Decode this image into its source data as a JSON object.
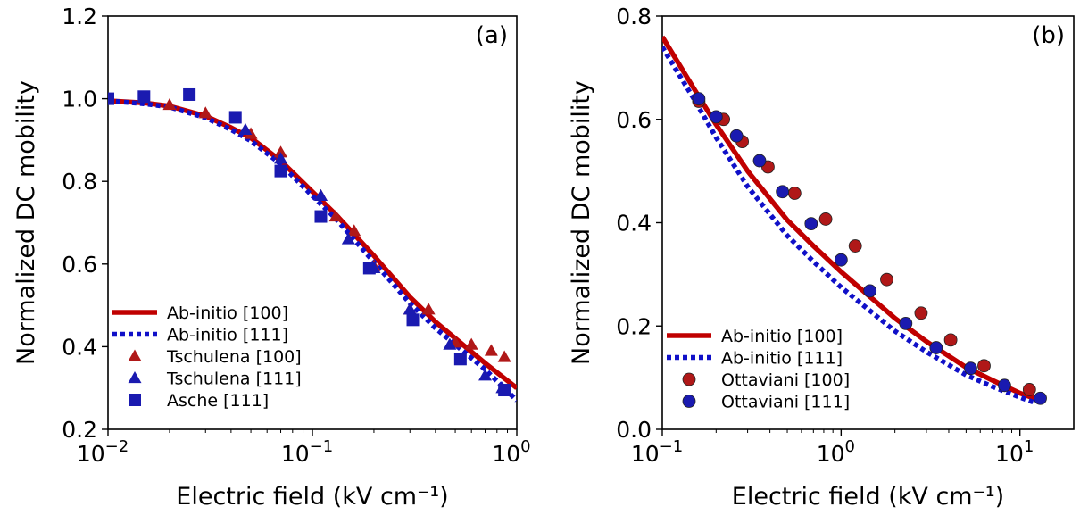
{
  "colors": {
    "red": "#c00000",
    "blue": "#1010c8",
    "red_marker": "#b01818",
    "blue_marker": "#1a1ab0"
  },
  "chart_data": [
    {
      "panel_label": "(a)",
      "type": "line",
      "xscale": "log",
      "xlim": [
        0.01,
        1
      ],
      "ylim": [
        0.2,
        1.2
      ],
      "xlabel": "Electric field (kV cm⁻¹)",
      "ylabel": "Normalized DC mobility",
      "x_ticks": [
        {
          "value": 0.01,
          "base": "10",
          "exp": "−2"
        },
        {
          "value": 0.1,
          "base": "10",
          "exp": "−1"
        },
        {
          "value": 1,
          "base": "10",
          "exp": "0"
        }
      ],
      "y_ticks": [
        {
          "value": 0.2,
          "label": "0.2"
        },
        {
          "value": 0.4,
          "label": "0.4"
        },
        {
          "value": 0.6,
          "label": "0.6"
        },
        {
          "value": 0.8,
          "label": "0.8"
        },
        {
          "value": 1.0,
          "label": "1.0"
        },
        {
          "value": 1.2,
          "label": "1.2"
        }
      ],
      "legend_position": "lower-left",
      "series": [
        {
          "name": "Ab-initio [100]",
          "kind": "line",
          "style": "solid",
          "color": "#c00000",
          "x": [
            0.01,
            0.015,
            0.02,
            0.03,
            0.04,
            0.05,
            0.07,
            0.1,
            0.13,
            0.2,
            0.3,
            0.4,
            0.5,
            0.7,
            1.0
          ],
          "y": [
            0.995,
            0.99,
            0.982,
            0.958,
            0.93,
            0.905,
            0.85,
            0.775,
            0.72,
            0.62,
            0.52,
            0.46,
            0.42,
            0.36,
            0.3
          ]
        },
        {
          "name": "Ab-initio [111]",
          "kind": "line",
          "style": "dotted",
          "color": "#1010c8",
          "x": [
            0.01,
            0.015,
            0.02,
            0.03,
            0.04,
            0.05,
            0.07,
            0.1,
            0.13,
            0.2,
            0.3,
            0.4,
            0.5,
            0.7,
            1.0
          ],
          "y": [
            0.995,
            0.988,
            0.98,
            0.954,
            0.925,
            0.898,
            0.842,
            0.765,
            0.71,
            0.605,
            0.505,
            0.445,
            0.405,
            0.345,
            0.27
          ]
        },
        {
          "name": "Tschulena [100]",
          "kind": "marker",
          "marker": "triangle",
          "color": "#b01818",
          "x": [
            0.02,
            0.03,
            0.05,
            0.07,
            0.11,
            0.13,
            0.16,
            0.2,
            0.3,
            0.37,
            0.5,
            0.6,
            0.75,
            0.87
          ],
          "y": [
            0.985,
            0.965,
            0.915,
            0.87,
            0.765,
            0.715,
            0.68,
            0.595,
            0.49,
            0.49,
            0.41,
            0.405,
            0.39,
            0.375
          ]
        },
        {
          "name": "Tschulena [111]",
          "kind": "marker",
          "marker": "triangle",
          "color": "#1a1ab0",
          "x": [
            0.047,
            0.07,
            0.11,
            0.15,
            0.2,
            0.3,
            0.47,
            0.7,
            0.85
          ],
          "y": [
            0.925,
            0.855,
            0.765,
            0.66,
            0.59,
            0.49,
            0.405,
            0.33,
            0.3
          ]
        },
        {
          "name": "Asche [111]",
          "kind": "marker",
          "marker": "square",
          "color": "#1a1ab0",
          "x": [
            0.01,
            0.015,
            0.025,
            0.042,
            0.07,
            0.11,
            0.19,
            0.31,
            0.53,
            0.87
          ],
          "y": [
            1.0,
            1.005,
            1.01,
            0.955,
            0.825,
            0.715,
            0.59,
            0.465,
            0.37,
            0.295
          ]
        }
      ]
    },
    {
      "panel_label": "(b)",
      "type": "line",
      "xscale": "log",
      "xlim": [
        0.1,
        20
      ],
      "ylim": [
        0.0,
        0.8
      ],
      "xlabel": "Electric field (kV cm⁻¹)",
      "ylabel": "Normalized DC mobility",
      "x_ticks": [
        {
          "value": 0.1,
          "base": "10",
          "exp": "−1"
        },
        {
          "value": 1,
          "base": "10",
          "exp": "0"
        },
        {
          "value": 10,
          "base": "10",
          "exp": "1"
        }
      ],
      "y_ticks": [
        {
          "value": 0.0,
          "label": "0.0"
        },
        {
          "value": 0.2,
          "label": "0.2"
        },
        {
          "value": 0.4,
          "label": "0.4"
        },
        {
          "value": 0.6,
          "label": "0.6"
        },
        {
          "value": 0.8,
          "label": "0.8"
        }
      ],
      "legend_position": "lower-left",
      "series": [
        {
          "name": "Ab-initio [100]",
          "kind": "line",
          "style": "solid",
          "color": "#c00000",
          "x": [
            0.1,
            0.15,
            0.2,
            0.3,
            0.5,
            0.7,
            1,
            2,
            3,
            5,
            7,
            10,
            12
          ],
          "y": [
            0.76,
            0.66,
            0.59,
            0.5,
            0.405,
            0.355,
            0.305,
            0.215,
            0.17,
            0.12,
            0.095,
            0.07,
            0.06
          ]
        },
        {
          "name": "Ab-initio [111]",
          "kind": "line",
          "style": "dotted",
          "color": "#1010c8",
          "x": [
            0.1,
            0.15,
            0.2,
            0.3,
            0.5,
            0.7,
            1,
            2,
            3,
            5,
            7,
            10,
            12
          ],
          "y": [
            0.74,
            0.64,
            0.565,
            0.47,
            0.375,
            0.325,
            0.275,
            0.19,
            0.15,
            0.105,
            0.083,
            0.062,
            0.052
          ]
        },
        {
          "name": "Ottaviani [100]",
          "kind": "marker",
          "marker": "circle",
          "color": "#b01818",
          "x": [
            0.16,
            0.22,
            0.28,
            0.39,
            0.55,
            0.82,
            1.2,
            1.8,
            2.8,
            4.1,
            6.3,
            11.3
          ],
          "y": [
            0.635,
            0.6,
            0.557,
            0.508,
            0.457,
            0.407,
            0.355,
            0.29,
            0.225,
            0.173,
            0.123,
            0.077
          ]
        },
        {
          "name": "Ottaviani [111]",
          "kind": "marker",
          "marker": "circle",
          "color": "#1a1ab0",
          "x": [
            0.16,
            0.2,
            0.26,
            0.35,
            0.47,
            0.68,
            1.0,
            1.45,
            2.3,
            3.4,
            5.3,
            8.2,
            13.0
          ],
          "y": [
            0.64,
            0.605,
            0.568,
            0.52,
            0.46,
            0.398,
            0.328,
            0.268,
            0.205,
            0.158,
            0.118,
            0.085,
            0.06
          ]
        }
      ]
    }
  ]
}
